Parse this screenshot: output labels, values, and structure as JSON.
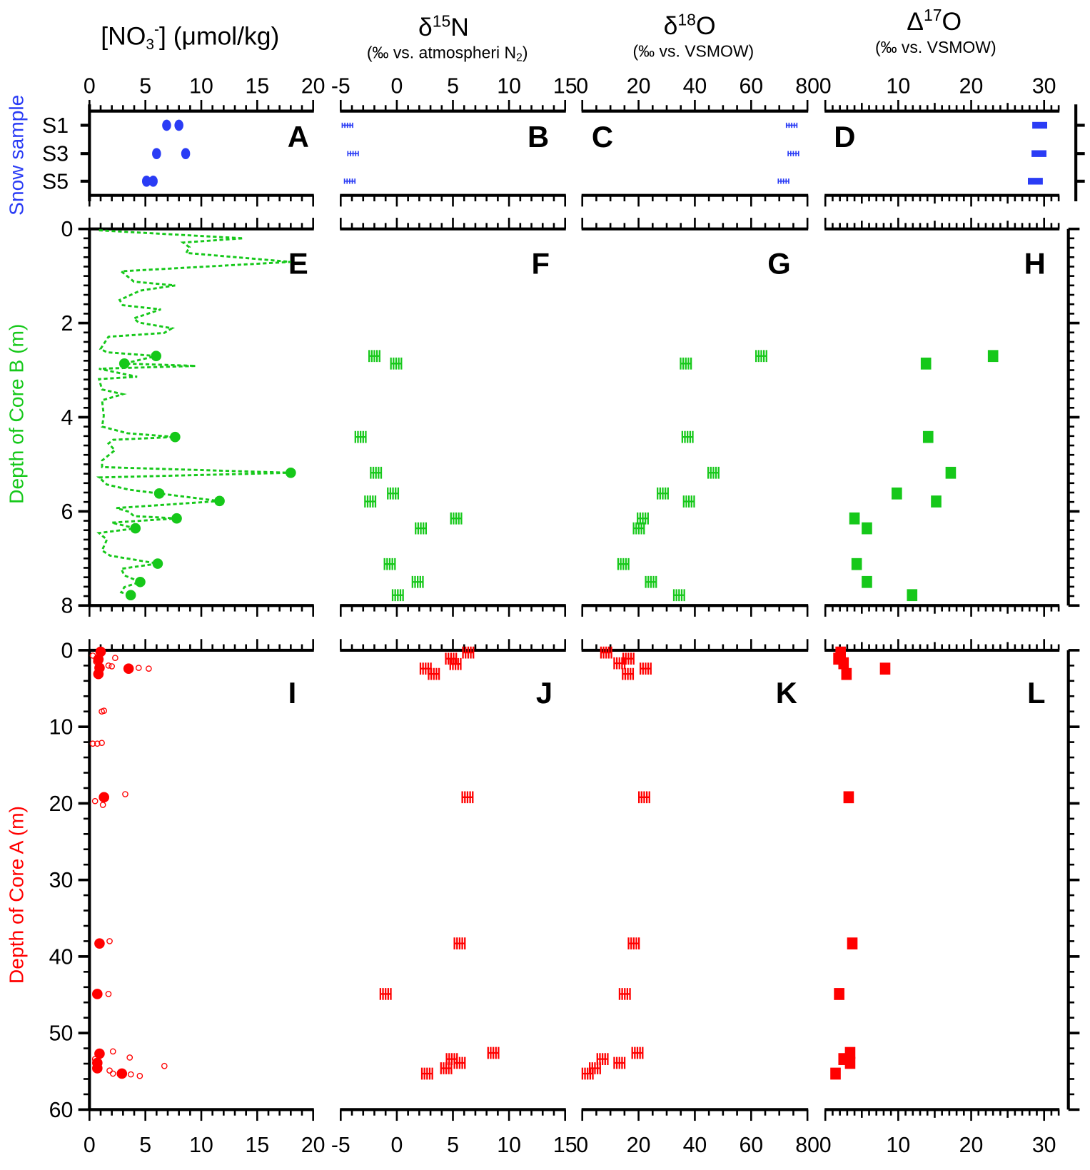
{
  "titles": {
    "no3": {
      "pre": "[NO",
      "sub": "3",
      "sup": "-",
      "post": "] (μmol/kg)"
    },
    "d15n": {
      "pre": "δ",
      "sup": "15",
      "post": "N",
      "unit_pre": "(‰ vs. atmospheri N",
      "unit_sub": "2",
      "unit_post": ")"
    },
    "d18o": {
      "pre": "δ",
      "sup": "18",
      "post": "O",
      "unit": "(‰ vs. VSMOW)"
    },
    "D17o": {
      "pre": "Δ",
      "sup": "17",
      "post": "O",
      "unit": "(‰ vs. VSMOW)"
    }
  },
  "y_axis_titles": {
    "snow": "Snow sample",
    "core_b": "Depth of Core B (m)",
    "core_a": "Depth of Core A (m)"
  },
  "colors": {
    "snow": "#2a3cf5",
    "core_b": "#16c81a",
    "core_a": "#ff0000"
  },
  "x_axes": [
    {
      "variable": "[NO3-] (μmol/kg)",
      "range": [
        0,
        20
      ],
      "ticks": [
        0,
        5,
        10,
        15,
        20
      ]
    },
    {
      "variable": "δ15N",
      "range": [
        -5,
        15
      ],
      "ticks": [
        -5,
        0,
        5,
        10,
        15
      ]
    },
    {
      "variable": "δ18O",
      "range": [
        0,
        80
      ],
      "ticks": [
        0,
        20,
        40,
        60,
        80
      ]
    },
    {
      "variable": "Δ17O",
      "range": [
        0,
        32
      ],
      "ticks": [
        0,
        10,
        20,
        30
      ]
    }
  ],
  "y_axes": {
    "snow": {
      "categories": [
        "S1",
        "S3",
        "S5"
      ]
    },
    "core_b": {
      "range": [
        0,
        8
      ],
      "ticks": [
        0,
        2,
        4,
        6,
        8
      ]
    },
    "core_a": {
      "range": [
        0,
        60
      ],
      "ticks": [
        0,
        10,
        20,
        30,
        40,
        50,
        60
      ]
    }
  },
  "chart_data": [
    {
      "panel": "A",
      "type": "scatter",
      "row": "snow",
      "col": 0,
      "marker": "dot",
      "points": [
        [
          6.9,
          "S1"
        ],
        [
          8.0,
          "S1"
        ],
        [
          6.0,
          "S3"
        ],
        [
          8.6,
          "S3"
        ],
        [
          5.1,
          "S5"
        ],
        [
          5.7,
          "S5"
        ]
      ]
    },
    {
      "panel": "B",
      "type": "scatter",
      "row": "snow",
      "col": 1,
      "marker": "errbar",
      "points": [
        [
          -4.4,
          "S1"
        ],
        [
          -3.9,
          "S3"
        ],
        [
          -4.2,
          "S5"
        ]
      ]
    },
    {
      "panel": "C",
      "type": "scatter",
      "row": "snow",
      "col": 2,
      "marker": "errbar",
      "points": [
        [
          74.4,
          "S1"
        ],
        [
          75.0,
          "S3"
        ],
        [
          71.5,
          "S5"
        ]
      ]
    },
    {
      "panel": "D",
      "type": "scatter",
      "row": "snow",
      "col": 3,
      "marker": "square",
      "points": [
        [
          29.4,
          "S1"
        ],
        [
          29.3,
          "S3"
        ],
        [
          28.8,
          "S5"
        ]
      ]
    },
    {
      "panel": "E",
      "type": "line+scatter",
      "row": "core_b",
      "col": 0,
      "marker": "dot",
      "line": [
        [
          0.85,
          0.03
        ],
        [
          13.76,
          0.2
        ],
        [
          8.37,
          0.29
        ],
        [
          8.94,
          0.39
        ],
        [
          8.65,
          0.51
        ],
        [
          18.0,
          0.7
        ],
        [
          2.84,
          0.9
        ],
        [
          3.97,
          1.12
        ],
        [
          7.66,
          1.2
        ],
        [
          4.54,
          1.31
        ],
        [
          2.7,
          1.51
        ],
        [
          2.98,
          1.62
        ],
        [
          6.38,
          1.71
        ],
        [
          3.97,
          1.9
        ],
        [
          4.4,
          1.99
        ],
        [
          7.38,
          2.11
        ],
        [
          6.67,
          2.21
        ],
        [
          1.7,
          2.29
        ],
        [
          0.99,
          2.55
        ],
        [
          1.56,
          2.62
        ],
        [
          5.96,
          2.7
        ],
        [
          3.12,
          2.86
        ],
        [
          9.5,
          2.91
        ],
        [
          0.85,
          2.97
        ],
        [
          4.26,
          3.14
        ],
        [
          0.85,
          3.19
        ],
        [
          1.13,
          3.41
        ],
        [
          2.98,
          3.51
        ],
        [
          1.13,
          3.64
        ],
        [
          1.28,
          3.97
        ],
        [
          1.13,
          4.2
        ],
        [
          3.4,
          4.34
        ],
        [
          7.66,
          4.42
        ],
        [
          2.13,
          4.48
        ],
        [
          1.7,
          4.56
        ],
        [
          2.27,
          4.7
        ],
        [
          1.13,
          4.92
        ],
        [
          1.13,
          5.06
        ],
        [
          18.0,
          5.18
        ],
        [
          0.85,
          5.28
        ],
        [
          1.56,
          5.43
        ],
        [
          3.55,
          5.54
        ],
        [
          6.24,
          5.62
        ],
        [
          11.63,
          5.78
        ],
        [
          2.41,
          5.93
        ],
        [
          3.55,
          6.01
        ],
        [
          3.97,
          6.1
        ],
        [
          7.8,
          6.15
        ],
        [
          1.99,
          6.24
        ],
        [
          4.11,
          6.36
        ],
        [
          0.85,
          6.46
        ],
        [
          1.56,
          6.6
        ],
        [
          1.13,
          6.83
        ],
        [
          1.84,
          6.94
        ],
        [
          6.1,
          7.11
        ],
        [
          2.84,
          7.22
        ],
        [
          3.12,
          7.36
        ],
        [
          4.54,
          7.5
        ],
        [
          3.12,
          7.61
        ],
        [
          2.84,
          7.72
        ],
        [
          3.69,
          7.78
        ]
      ],
      "points": [
        [
          5.96,
          2.7
        ],
        [
          3.12,
          2.86
        ],
        [
          7.66,
          4.42
        ],
        [
          18.0,
          5.18
        ],
        [
          6.24,
          5.62
        ],
        [
          11.63,
          5.78
        ],
        [
          7.8,
          6.15
        ],
        [
          4.11,
          6.36
        ],
        [
          6.1,
          7.11
        ],
        [
          4.54,
          7.5
        ],
        [
          3.69,
          7.78
        ]
      ]
    },
    {
      "panel": "F",
      "type": "scatter",
      "row": "core_b",
      "col": 1,
      "marker": "errbar",
      "points": [
        [
          -2.0,
          2.7
        ],
        [
          -0.06,
          2.86
        ],
        [
          -3.23,
          4.42
        ],
        [
          -1.86,
          5.18
        ],
        [
          -0.34,
          5.62
        ],
        [
          -2.37,
          5.79
        ],
        [
          5.29,
          6.15
        ],
        [
          2.14,
          6.36
        ],
        [
          -0.63,
          7.12
        ],
        [
          1.86,
          7.5
        ],
        [
          0.09,
          7.78
        ]
      ]
    },
    {
      "panel": "G",
      "type": "scatter",
      "row": "core_b",
      "col": 2,
      "marker": "errbar",
      "points": [
        [
          63.6,
          2.7
        ],
        [
          36.8,
          2.86
        ],
        [
          37.4,
          4.42
        ],
        [
          46.6,
          5.18
        ],
        [
          28.6,
          5.62
        ],
        [
          37.9,
          5.79
        ],
        [
          21.5,
          6.15
        ],
        [
          20.1,
          6.36
        ],
        [
          14.6,
          7.12
        ],
        [
          24.4,
          7.5
        ],
        [
          34.4,
          7.78
        ]
      ]
    },
    {
      "panel": "H",
      "type": "scatter",
      "row": "core_b",
      "col": 3,
      "marker": "square",
      "points": [
        [
          23.0,
          2.7
        ],
        [
          13.8,
          2.86
        ],
        [
          14.1,
          4.42
        ],
        [
          17.2,
          5.18
        ],
        [
          9.8,
          5.62
        ],
        [
          15.2,
          5.79
        ],
        [
          4.0,
          6.15
        ],
        [
          5.7,
          6.36
        ],
        [
          4.3,
          7.12
        ],
        [
          5.7,
          7.5
        ],
        [
          11.9,
          7.78
        ]
      ]
    },
    {
      "panel": "I",
      "type": "scatter",
      "row": "core_a",
      "col": 0,
      "marker": "dot",
      "points": [
        [
          1.0,
          0.2
        ],
        [
          0.8,
          1.2
        ],
        [
          0.9,
          2.3
        ],
        [
          3.5,
          2.4
        ],
        [
          0.8,
          3.1
        ],
        [
          1.3,
          19.2
        ],
        [
          0.9,
          38.3
        ],
        [
          0.7,
          44.9
        ],
        [
          0.9,
          52.7
        ],
        [
          0.7,
          53.9
        ],
        [
          0.7,
          54.6
        ],
        [
          2.9,
          55.3
        ]
      ],
      "open_points": [
        [
          0.3,
          0.7
        ],
        [
          0.6,
          1.5
        ],
        [
          2.3,
          1.0
        ],
        [
          2.0,
          2.1
        ],
        [
          4.4,
          2.3
        ],
        [
          5.3,
          2.4
        ],
        [
          1.7,
          2.0
        ],
        [
          1.1,
          8.0
        ],
        [
          1.3,
          7.9
        ],
        [
          0.3,
          12.2
        ],
        [
          0.7,
          12.2
        ],
        [
          1.1,
          12.1
        ],
        [
          3.2,
          18.8
        ],
        [
          0.5,
          19.7
        ],
        [
          1.2,
          20.2
        ],
        [
          1.8,
          38.0
        ],
        [
          1.7,
          44.9
        ],
        [
          2.1,
          52.4
        ],
        [
          3.6,
          53.2
        ],
        [
          6.7,
          54.3
        ],
        [
          1.8,
          54.9
        ],
        [
          2.1,
          55.3
        ],
        [
          3.7,
          55.4
        ],
        [
          4.5,
          55.6
        ],
        [
          0.5,
          53.4
        ]
      ]
    },
    {
      "panel": "J",
      "type": "scatter",
      "row": "core_a",
      "col": 1,
      "marker": "errbar",
      "points": [
        [
          6.36,
          0.3
        ],
        [
          4.83,
          1.1
        ],
        [
          5.23,
          1.8
        ],
        [
          2.57,
          2.4
        ],
        [
          3.3,
          3.1
        ],
        [
          6.3,
          19.2
        ],
        [
          5.6,
          38.3
        ],
        [
          -1.0,
          44.9
        ],
        [
          8.6,
          52.6
        ],
        [
          4.9,
          53.4
        ],
        [
          5.6,
          53.9
        ],
        [
          4.4,
          54.6
        ],
        [
          2.7,
          55.3
        ]
      ]
    },
    {
      "panel": "K",
      "type": "scatter",
      "row": "core_a",
      "col": 2,
      "marker": "errbar",
      "points": [
        [
          8.5,
          0.3
        ],
        [
          16.4,
          1.1
        ],
        [
          13.2,
          1.7
        ],
        [
          22.5,
          2.4
        ],
        [
          16.2,
          3.1
        ],
        [
          22.0,
          19.2
        ],
        [
          18.3,
          38.3
        ],
        [
          15.1,
          44.9
        ],
        [
          19.6,
          52.6
        ],
        [
          7.2,
          53.4
        ],
        [
          13.2,
          53.9
        ],
        [
          4.5,
          54.6
        ],
        [
          1.9,
          55.3
        ]
      ]
    },
    {
      "panel": "L",
      "type": "scatter",
      "row": "core_a",
      "col": 3,
      "marker": "square",
      "points": [
        [
          2.1,
          0.3
        ],
        [
          1.8,
          1.1
        ],
        [
          2.5,
          1.7
        ],
        [
          8.2,
          2.4
        ],
        [
          2.9,
          3.1
        ],
        [
          3.2,
          19.2
        ],
        [
          3.7,
          38.3
        ],
        [
          1.9,
          44.9
        ],
        [
          3.4,
          52.6
        ],
        [
          2.5,
          53.4
        ],
        [
          3.4,
          53.9
        ],
        [
          1.4,
          55.3
        ]
      ]
    }
  ]
}
